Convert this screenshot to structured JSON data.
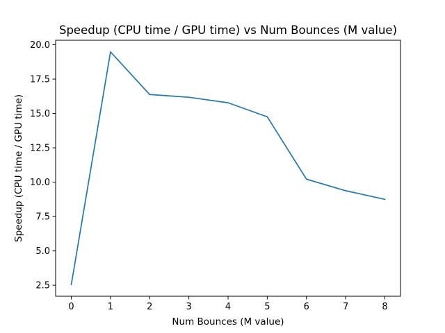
{
  "chart_data": {
    "type": "line",
    "title": "Speedup (CPU time / GPU time) vs Num Bounces (M value)",
    "xlabel": "Num Bounces (M value)",
    "ylabel": "Speedup (CPU time / GPU time)",
    "x": [
      0,
      1,
      2,
      3,
      4,
      5,
      6,
      7,
      8
    ],
    "series": [
      {
        "values": [
          2.55,
          19.48,
          16.38,
          16.18,
          15.78,
          14.76,
          10.22,
          9.38,
          8.75
        ],
        "color": "#1f77b4"
      }
    ],
    "xlim": [
      -0.4,
      8.4
    ],
    "ylim": [
      1.7,
      20.33
    ],
    "xticks": [
      0,
      1,
      2,
      3,
      4,
      5,
      6,
      7,
      8
    ],
    "xtick_labels": [
      "0",
      "1",
      "2",
      "3",
      "4",
      "5",
      "6",
      "7",
      "8"
    ],
    "yticks": [
      2.5,
      5.0,
      7.5,
      10.0,
      12.5,
      15.0,
      17.5,
      20.0
    ],
    "ytick_labels": [
      "2.5",
      "5.0",
      "7.5",
      "10.0",
      "12.5",
      "15.0",
      "17.5",
      "20.0"
    ],
    "grid": false,
    "legend": false
  }
}
